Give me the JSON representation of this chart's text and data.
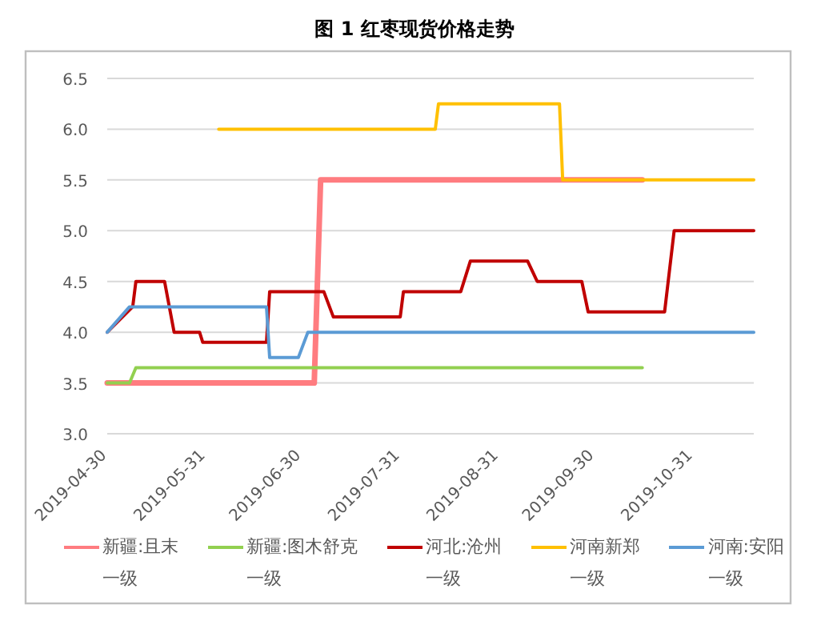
{
  "chart_data": {
    "type": "line",
    "title": "图 1 红枣现货价格走势",
    "ylim": [
      3,
      6.5
    ],
    "yticks": [
      {
        "value": 3,
        "label": "3.0"
      },
      {
        "value": 3.5,
        "label": "3.5"
      },
      {
        "value": 4,
        "label": "4.0"
      },
      {
        "value": 4.5,
        "label": "4.5"
      },
      {
        "value": 5,
        "label": "5.0"
      },
      {
        "value": 5.5,
        "label": "5.5"
      },
      {
        "value": 6,
        "label": "6.0"
      },
      {
        "value": 6.5,
        "label": "6.5"
      }
    ],
    "xlim": [
      "2019-04-30",
      "2019-11-19"
    ],
    "xticks": [
      "2019-04-30",
      "2019-05-31",
      "2019-06-30",
      "2019-07-31",
      "2019-08-31",
      "2019-09-30",
      "2019-10-31"
    ],
    "grid": "y",
    "legend": "bottom",
    "series": [
      {
        "name": "新疆:且末一级",
        "color": "#ff7c80",
        "x": [
          "2019-04-30",
          "2019-07-04",
          "2019-07-06",
          "2019-10-15"
        ],
        "values": [
          3.5,
          3.5,
          5.5,
          5.5
        ]
      },
      {
        "name": "新疆:图木舒克一级",
        "color": "#92d050",
        "x": [
          "2019-04-30",
          "2019-05-07",
          "2019-05-09",
          "2019-10-15"
        ],
        "values": [
          3.5,
          3.5,
          3.65,
          3.65
        ]
      },
      {
        "name": "河北:沧州一级",
        "color": "#c00000",
        "x": [
          "2019-04-30",
          "2019-05-08",
          "2019-05-09",
          "2019-05-18",
          "2019-05-21",
          "2019-05-29",
          "2019-05-30",
          "2019-06-19",
          "2019-06-20",
          "2019-07-07",
          "2019-07-10",
          "2019-07-31",
          "2019-08-01",
          "2019-08-19",
          "2019-08-22",
          "2019-09-09",
          "2019-09-12",
          "2019-09-26",
          "2019-09-28",
          "2019-10-22",
          "2019-10-25",
          "2019-11-19"
        ],
        "values": [
          4,
          4.25,
          4.5,
          4.5,
          4,
          4,
          3.9,
          3.9,
          4.4,
          4.4,
          4.15,
          4.15,
          4.4,
          4.4,
          4.7,
          4.7,
          4.5,
          4.5,
          4.2,
          4.2,
          5,
          5
        ]
      },
      {
        "name": "河南新郑一级",
        "color": "#ffc000",
        "x": [
          "2019-06-04",
          "2019-08-11",
          "2019-08-12",
          "2019-09-19",
          "2019-09-20",
          "2019-11-19"
        ],
        "values": [
          6,
          6,
          6.25,
          6.25,
          5.5,
          5.5
        ]
      },
      {
        "name": "河南:安阳一级",
        "color": "#5b9bd5",
        "x": [
          "2019-04-30",
          "2019-05-07",
          "2019-06-19",
          "2019-06-20",
          "2019-06-29",
          "2019-07-02",
          "2019-11-19"
        ],
        "values": [
          4,
          4.25,
          4.25,
          3.75,
          3.75,
          4,
          4
        ]
      }
    ]
  }
}
